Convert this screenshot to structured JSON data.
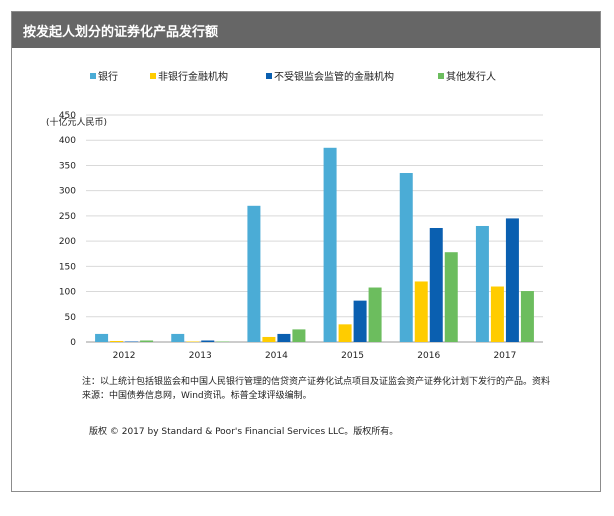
{
  "header": {
    "title": "按发起人划分的证券化产品发行额"
  },
  "chart_data": {
    "type": "bar",
    "title": "",
    "unit_label": "(十亿元人民币)",
    "categories": [
      "2012",
      "2013",
      "2014",
      "2015",
      "2016",
      "2017"
    ],
    "series": [
      {
        "name": "银行",
        "color": "#4bacd6",
        "values": [
          16,
          16,
          270,
          385,
          335,
          230
        ]
      },
      {
        "name": "非银行金融机构",
        "color": "#ffcc00",
        "values": [
          2,
          1,
          10,
          35,
          120,
          110
        ]
      },
      {
        "name": "不受银监会监管的金融机构",
        "color": "#0a5fb0",
        "values": [
          1,
          3,
          16,
          82,
          226,
          245
        ]
      },
      {
        "name": "其他发行人",
        "color": "#6cbd5e",
        "values": [
          3,
          1,
          25,
          108,
          178,
          101
        ]
      }
    ],
    "ylim": [
      0,
      450
    ],
    "yticks": [
      0,
      50,
      100,
      150,
      200,
      250,
      300,
      350,
      400,
      450
    ],
    "grid": true,
    "legend_position": "top"
  },
  "footer": {
    "note": "注：以上统计包括银监会和中国人民银行管理的信贷资产证券化试点项目及证监会资产证券化计划下发行的产品。资料来源：中国债券信息网，Wind资讯。标普全球评级编制。",
    "copyright": "版权 © 2017 by Standard & Poor's Financial Services LLC。版权所有。"
  }
}
